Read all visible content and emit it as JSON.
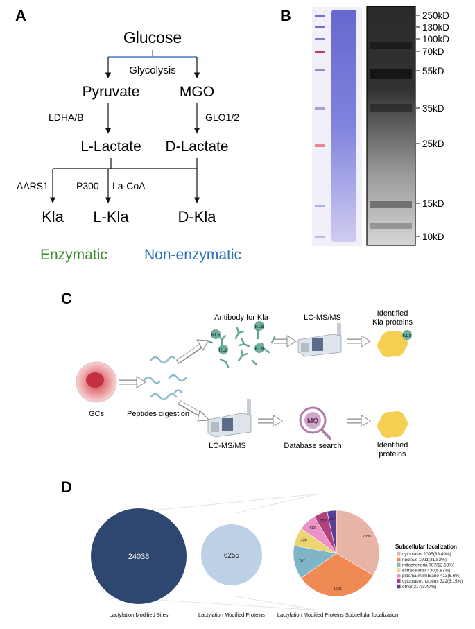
{
  "panel_labels": {
    "a": "A",
    "b": "B",
    "c": "C",
    "d": "D"
  },
  "panel_a": {
    "glucose": "Glucose",
    "glycolysis": "Glycolysis",
    "pyruvate": "Pyruvate",
    "mgo": "MGO",
    "ldha": "LDHA/B",
    "glo": "GLO1/2",
    "l_lactate": "L-Lactate",
    "d_lactate": "D-Lactate",
    "aars1": "AARS1",
    "p300": "P300",
    "la_coa": "La-CoA",
    "kla": "Kla",
    "l_kla": "L-Kla",
    "d_kla": "D-Kla",
    "enzymatic": "Enzymatic",
    "non_enzymatic": "Non-enzymatic",
    "colors": {
      "enzymatic": "#3a8a2e",
      "non_enzymatic": "#2e6fb5"
    }
  },
  "panel_b": {
    "markers": [
      "250kD",
      "130kD",
      "100kD",
      "70kD",
      "55kD",
      "35kD",
      "25kD",
      "15kD",
      "10kD"
    ]
  },
  "panel_c": {
    "antibody": "Antibody for Kla",
    "lcms_top": "LC-MS/MS",
    "identified_kla_1": "Identified",
    "identified_kla_2": "Kla proteins",
    "kla_tag": "KLa",
    "gcs": "GCs",
    "peptides": "Peptides digestion",
    "lcms_bottom": "LC-MS/MS",
    "mq": "MQ",
    "database": "Database search",
    "identified_1": "Identified",
    "identified_2": "proteins"
  },
  "panel_d": {
    "sites_value": "24038",
    "sites_label": "Lactylation Modified Sites",
    "proteins_value": "6255",
    "proteins_label": "Lactylation Modified Proteins",
    "pie_label": "Lactylation Modified Proteins Subcellular localization",
    "legend_title": "Subcellular localization"
  },
  "chart_data": {
    "type": "pie",
    "title": "",
    "legend_title": "Subcellular localization",
    "slices": [
      {
        "name": "cytoplasm 2095(33.49%)",
        "value": 2095,
        "label": "2095",
        "color": "#e8b4a8"
      },
      {
        "name": "nucleus 1991(31.83%)",
        "value": 1991,
        "label": "1991",
        "color": "#f08a55"
      },
      {
        "name": "mitochondria 787(12.58%)",
        "value": 787,
        "label": "787",
        "color": "#7fb4c9"
      },
      {
        "name": "extracellular 430(6.87%)",
        "value": 430,
        "label": "430",
        "color": "#ecd470"
      },
      {
        "name": "plasma membrane 413(6.6%)",
        "value": 413,
        "label": "413",
        "color": "#ec92c6"
      },
      {
        "name": "cytoplasm,nucleus 322(5.15%)",
        "value": 322,
        "label": "322",
        "color": "#b1427d"
      },
      {
        "name": "other 217(3.47%)",
        "value": 217,
        "label": "217",
        "color": "#5a3f98"
      }
    ],
    "legend_position": "right"
  }
}
